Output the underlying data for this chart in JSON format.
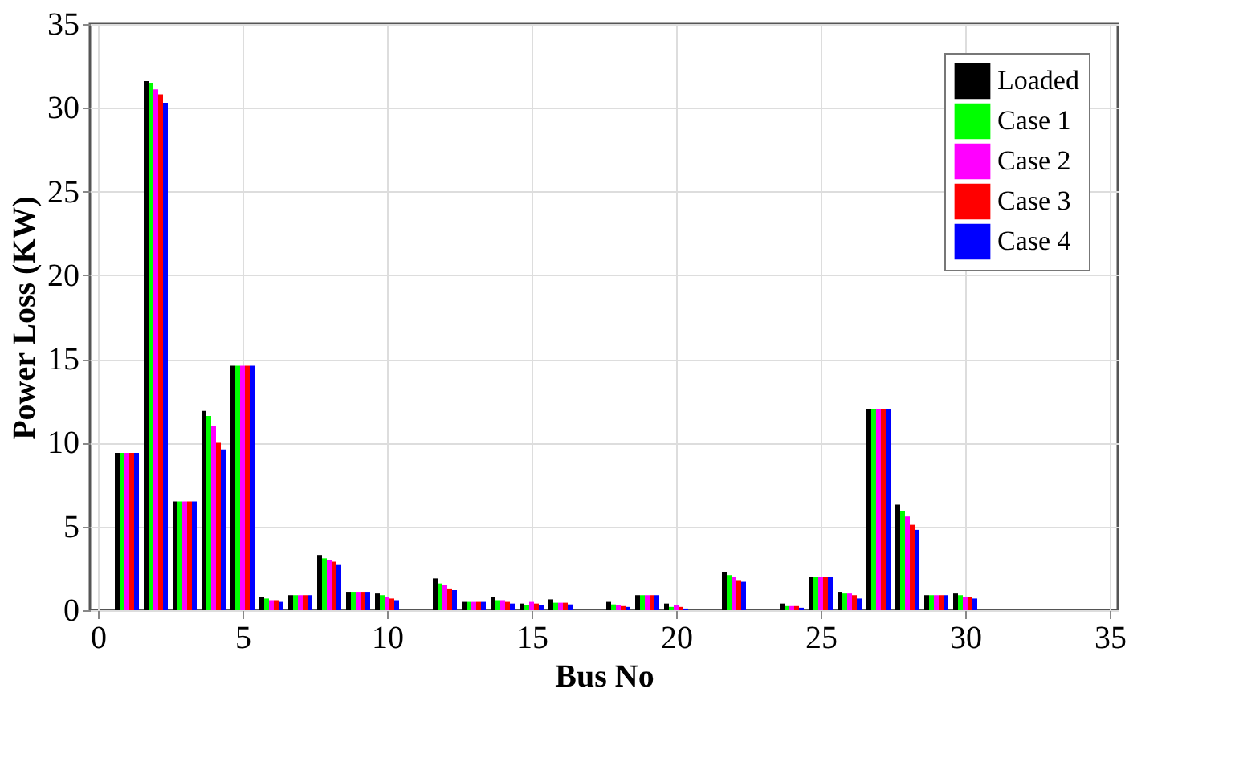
{
  "chart_data": {
    "type": "bar",
    "xlabel": "Bus No",
    "ylabel": "Power Loss (KW)",
    "x": [
      1,
      2,
      3,
      4,
      5,
      6,
      7,
      8,
      9,
      10,
      11,
      12,
      13,
      14,
      15,
      16,
      17,
      18,
      19,
      20,
      21,
      22,
      23,
      24,
      25,
      26,
      27,
      28,
      29,
      30
    ],
    "series": [
      {
        "name": "Loaded",
        "color": "#000000",
        "values": [
          9.4,
          31.6,
          6.5,
          11.9,
          14.6,
          0.8,
          0.9,
          3.3,
          1.1,
          1.0,
          0,
          1.9,
          0.5,
          0.8,
          0.4,
          0.65,
          0,
          0.5,
          0.9,
          0.4,
          0,
          2.3,
          0,
          0.4,
          2.0,
          1.1,
          12.0,
          6.3,
          0.9,
          1.0
        ]
      },
      {
        "name": "Case 1",
        "color": "#00ff00",
        "values": [
          9.4,
          31.5,
          6.5,
          11.6,
          14.6,
          0.7,
          0.9,
          3.1,
          1.1,
          0.9,
          0,
          1.6,
          0.5,
          0.6,
          0.3,
          0.45,
          0,
          0.35,
          0.9,
          0.2,
          0,
          2.1,
          0,
          0.25,
          2.0,
          1.0,
          12.0,
          5.9,
          0.9,
          0.9
        ]
      },
      {
        "name": "Case 2",
        "color": "#ff00ff",
        "values": [
          9.4,
          31.1,
          6.5,
          11.0,
          14.6,
          0.6,
          0.9,
          3.0,
          1.1,
          0.8,
          0,
          1.5,
          0.5,
          0.6,
          0.5,
          0.45,
          0,
          0.3,
          0.9,
          0.3,
          0,
          2.0,
          0,
          0.25,
          2.0,
          1.0,
          12.0,
          5.6,
          0.9,
          0.8
        ]
      },
      {
        "name": "Case 3",
        "color": "#ff0000",
        "values": [
          9.4,
          30.8,
          6.5,
          10.0,
          14.6,
          0.6,
          0.9,
          2.9,
          1.1,
          0.7,
          0,
          1.3,
          0.5,
          0.5,
          0.4,
          0.45,
          0,
          0.25,
          0.9,
          0.2,
          0,
          1.8,
          0,
          0.25,
          2.0,
          0.9,
          12.0,
          5.1,
          0.9,
          0.8
        ]
      },
      {
        "name": "Case 4",
        "color": "#0000ff",
        "values": [
          9.4,
          30.3,
          6.5,
          9.6,
          14.6,
          0.5,
          0.9,
          2.7,
          1.1,
          0.6,
          0,
          1.2,
          0.5,
          0.4,
          0.3,
          0.35,
          0,
          0.2,
          0.9,
          0.1,
          0,
          1.7,
          0,
          0.15,
          2.0,
          0.7,
          12.0,
          4.8,
          0.9,
          0.7
        ]
      }
    ],
    "xlim": [
      0,
      35
    ],
    "xticks": [
      0,
      5,
      10,
      15,
      20,
      25,
      30,
      35
    ],
    "ylim": [
      0,
      35
    ],
    "yticks": [
      0,
      5,
      10,
      15,
      20,
      25,
      30,
      35
    ],
    "grid": true,
    "legend": "top right"
  }
}
